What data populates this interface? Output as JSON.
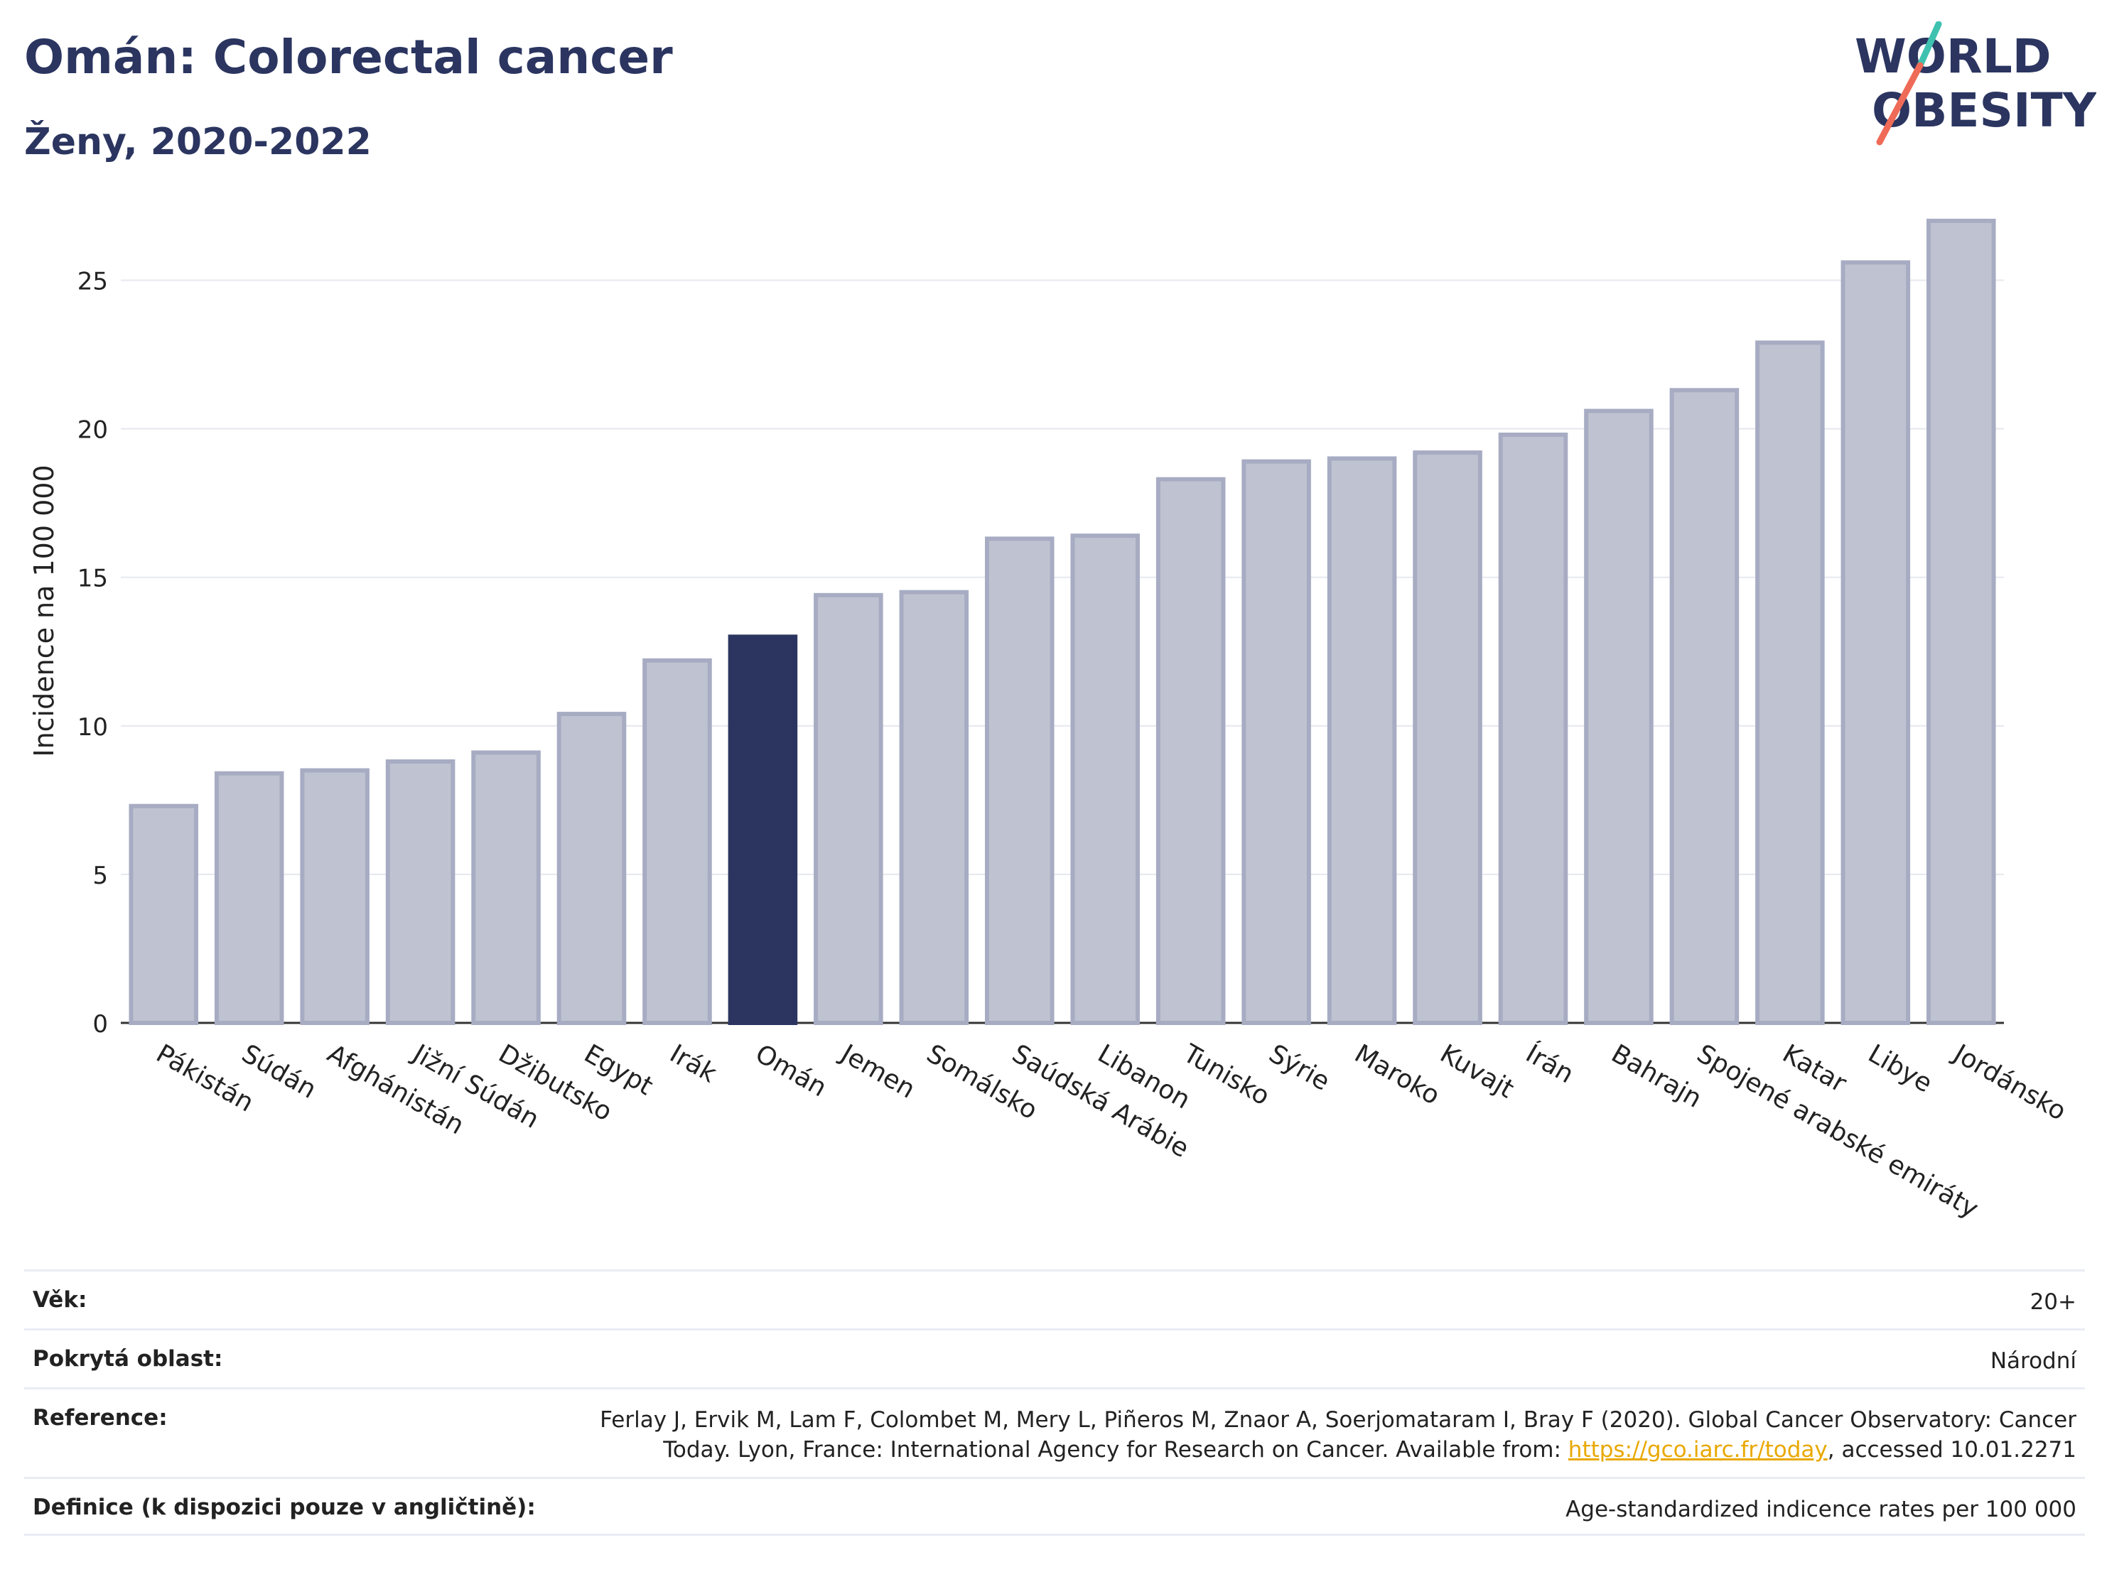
{
  "header": {
    "title": "Omán: Colorectal cancer",
    "subtitle": "Ženy, 2020-2022"
  },
  "logo": {
    "line1": "WORLD",
    "line2": "OBESITY",
    "accent_color": "#3fc1b0",
    "slash_color": "#ef6b57"
  },
  "chart_data": {
    "type": "bar",
    "ylabel": "Incidence na 100 000",
    "xlabel": "",
    "ylim": [
      0,
      27.5
    ],
    "yticks": [
      0,
      5,
      10,
      15,
      20,
      25
    ],
    "grid": true,
    "highlight": "Omán",
    "bar_color": "#bfc3d1",
    "bar_edge_color": "#a7acc3",
    "highlight_color": "#2b3560",
    "categories": [
      "Pákistán",
      "Súdán",
      "Afghánistán",
      "Jižní Súdán",
      "Džibutsko",
      "Egypt",
      "Irák",
      "Omán",
      "Jemen",
      "Somálsko",
      "Saúdská Arábie",
      "Libanon",
      "Tunisko",
      "Sýrie",
      "Maroko",
      "Kuvajt",
      "Írán",
      "Bahrajn",
      "Spojené arabské emiráty",
      "Katar",
      "Libye",
      "Jordánsko"
    ],
    "values": [
      7.3,
      8.4,
      8.5,
      8.8,
      9.1,
      10.4,
      12.2,
      13.0,
      14.4,
      14.5,
      16.3,
      16.4,
      18.3,
      18.9,
      19.0,
      19.2,
      19.8,
      20.6,
      21.3,
      22.9,
      25.6,
      27.0
    ]
  },
  "meta": [
    {
      "key": "Věk:",
      "value": "20+"
    },
    {
      "key": "Pokrytá oblast:",
      "value": "Národní"
    },
    {
      "key": "Reference:",
      "value_pre": "Ferlay J, Ervik M, Lam F, Colombet M, Mery L, Piñeros M, Znaor A, Soerjomataram I, Bray F (2020). Global Cancer Observatory: Cancer Today. Lyon, France: International Agency for Research on Cancer. Available from: ",
      "link": "https://gco.iarc.fr/today",
      "value_post": ", accessed 10.01.2271"
    },
    {
      "key": "Definice (k dispozici pouze v angličtině):",
      "value": "Age-standardized indicence rates per 100 000"
    }
  ]
}
